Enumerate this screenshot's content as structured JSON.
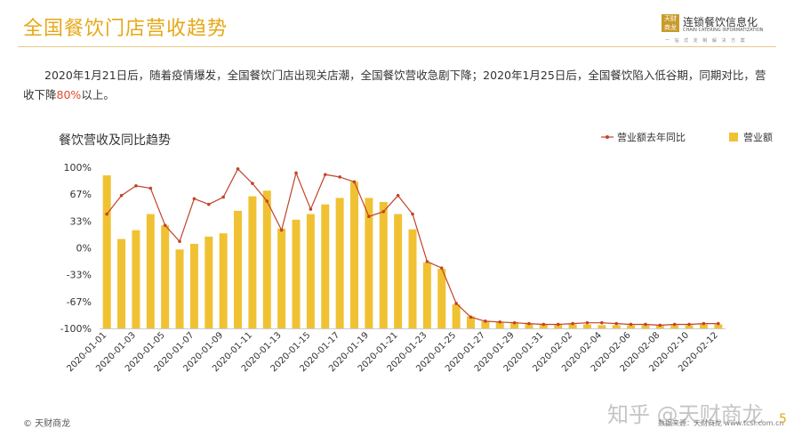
{
  "header": {
    "title": "全国餐饮门店营收趋势",
    "logo_mark": "天财\n商龙",
    "logo_cn": "连锁餐饮信息化",
    "logo_en": "CHAIN CATERING INFORMATIZATION",
    "logo_slogan": "一 站 式 定 制 解 决 方 案"
  },
  "summary": {
    "text_before": "2020年1月21日后，随着疫情爆发，全国餐饮门店出现关店潮，全国餐饮营收急剧下降；2020年1月25日后，全国餐饮陷入低谷期，同期对比，营收下降",
    "highlight": "80%",
    "text_after": "以上。"
  },
  "footer": {
    "copyright": "© 天财商龙",
    "source": "数据来源：天财商龙",
    "url": "www.tcsl.com.cn",
    "page": "5",
    "watermark": "知乎 @天财商龙"
  },
  "colors": {
    "accent": "#e6a817",
    "bar": "#f0c233",
    "line": "#c0442a"
  },
  "chart_data": {
    "type": "bar",
    "title": "餐饮营收及同比趋势",
    "legend_position": "top-right",
    "grid": false,
    "ylim": [
      -100,
      100
    ],
    "yticks": [
      100,
      67,
      33,
      0,
      -33,
      -67,
      -100
    ],
    "ytick_labels": [
      "100%",
      "67%",
      "33%",
      "0%",
      "-33%",
      "-67%",
      "-100%"
    ],
    "x": [
      "2020-01-01",
      "2020-01-02",
      "2020-01-03",
      "2020-01-04",
      "2020-01-05",
      "2020-01-06",
      "2020-01-07",
      "2020-01-08",
      "2020-01-09",
      "2020-01-10",
      "2020-01-11",
      "2020-01-12",
      "2020-01-13",
      "2020-01-14",
      "2020-01-15",
      "2020-01-16",
      "2020-01-17",
      "2020-01-18",
      "2020-01-19",
      "2020-01-20",
      "2020-01-21",
      "2020-01-22",
      "2020-01-23",
      "2020-01-24",
      "2020-01-25",
      "2020-01-26",
      "2020-01-27",
      "2020-01-28",
      "2020-01-29",
      "2020-01-30",
      "2020-01-31",
      "2020-02-01",
      "2020-02-02",
      "2020-02-03",
      "2020-02-04",
      "2020-02-05",
      "2020-02-06",
      "2020-02-07",
      "2020-02-08",
      "2020-02-09",
      "2020-02-10",
      "2020-02-11",
      "2020-02-12"
    ],
    "x_tick_labels": [
      "2020-01-01",
      "2020-01-03",
      "2020-01-05",
      "2020-01-07",
      "2020-01-09",
      "2020-01-11",
      "2020-01-13",
      "2020-01-15",
      "2020-01-17",
      "2020-01-19",
      "2020-01-21",
      "2020-01-23",
      "2020-01-25",
      "2020-01-27",
      "2020-01-29",
      "2020-01-31",
      "2020-02-02",
      "2020-02-04",
      "2020-02-06",
      "2020-02-08",
      "2020-02-10",
      "2020-02-12"
    ],
    "series": [
      {
        "name": "营业额",
        "type": "bar",
        "values": [
          90,
          11,
          22,
          42,
          28,
          -2,
          5,
          14,
          18,
          46,
          64,
          71,
          24,
          35,
          42,
          54,
          62,
          82,
          62,
          57,
          42,
          23,
          -18,
          -26,
          -70,
          -85,
          -91,
          -92,
          -92,
          -94,
          -95,
          -95,
          -95,
          -95,
          -96,
          -96,
          -96,
          -96,
          -96,
          -96,
          -96,
          -95,
          -95
        ]
      },
      {
        "name": "营业额去年同比",
        "type": "line",
        "values": [
          42,
          65,
          77,
          74,
          28,
          8,
          61,
          54,
          63,
          98,
          80,
          58,
          22,
          93,
          48,
          91,
          88,
          82,
          39,
          45,
          65,
          42,
          -17,
          -25,
          -69,
          -86,
          -91,
          -92,
          -93,
          -94,
          -95,
          -95,
          -94,
          -93,
          -93,
          -94,
          -95,
          -95,
          -96,
          -95,
          -95,
          -94,
          -94
        ]
      }
    ]
  }
}
